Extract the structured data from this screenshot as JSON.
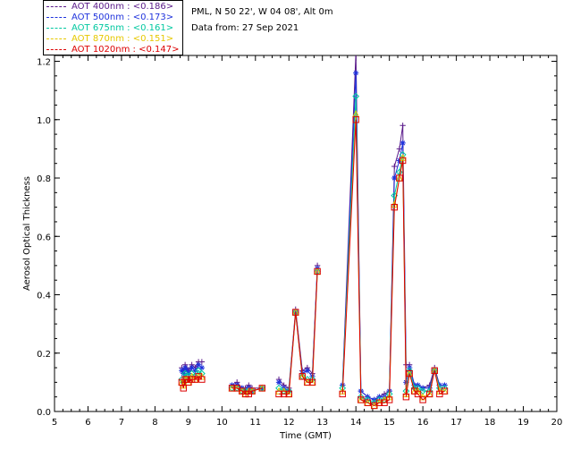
{
  "header": {
    "site": "PML, N 50 22', W 04 08', Alt 0m",
    "date_line": "Data from: 27 Sep 2021"
  },
  "legend": [
    {
      "label": "AOT  400nm : <0.186>",
      "color": "#5a1a8a"
    },
    {
      "label": "AOT  500nm : <0.173>",
      "color": "#1e32dc"
    },
    {
      "label": "AOT  675nm : <0.161>",
      "color": "#00c8a0"
    },
    {
      "label": "AOT  870nm : <0.151>",
      "color": "#e6c800"
    },
    {
      "label": "AOT 1020nm : <0.147>",
      "color": "#dc0000"
    }
  ],
  "chart_data": {
    "type": "line",
    "xlabel": "Time (GMT)",
    "ylabel": "Aerosol Optical Thickness",
    "xlim": [
      5,
      20
    ],
    "ylim": [
      0,
      1.22
    ],
    "xticks": [
      "5",
      "6",
      "7",
      "8",
      "9",
      "10",
      "11",
      "12",
      "13",
      "14",
      "15",
      "16",
      "17",
      "18",
      "19",
      "20"
    ],
    "yticks": [
      "0.0",
      "0.2",
      "0.4",
      "0.6",
      "0.8",
      "1.0",
      "1.2"
    ],
    "x": [
      8.8,
      8.85,
      8.9,
      8.95,
      9.0,
      9.1,
      9.2,
      9.3,
      9.4,
      10.3,
      10.45,
      10.6,
      10.7,
      10.8,
      10.9,
      11.2,
      11.7,
      11.85,
      12.0,
      12.2,
      12.4,
      12.55,
      12.7,
      12.85,
      13.6,
      14.0,
      14.15,
      14.35,
      14.55,
      14.7,
      14.85,
      15.0,
      15.15,
      15.3,
      15.4,
      15.5,
      15.6,
      15.75,
      15.85,
      16.0,
      16.2,
      16.35,
      16.5,
      16.65
    ],
    "series": [
      {
        "name": "AOT  400nm : <0.186>",
        "color": "#5a1a8a",
        "marker": "plus",
        "values": [
          0.15,
          0.14,
          0.16,
          0.15,
          0.14,
          0.16,
          0.15,
          0.17,
          0.17,
          0.09,
          0.1,
          0.08,
          0.08,
          0.09,
          0.08,
          0.08,
          0.11,
          0.09,
          0.08,
          0.35,
          0.14,
          0.15,
          0.13,
          0.5,
          0.09,
          1.23,
          0.07,
          0.05,
          0.04,
          0.05,
          0.06,
          0.07,
          0.84,
          0.9,
          0.98,
          0.16,
          0.16,
          0.09,
          0.09,
          0.08,
          0.09,
          0.15,
          0.09,
          0.09
        ]
      },
      {
        "name": "AOT  500nm : <0.173>",
        "color": "#1e32dc",
        "marker": "star",
        "values": [
          0.14,
          0.13,
          0.15,
          0.14,
          0.13,
          0.15,
          0.14,
          0.16,
          0.15,
          0.09,
          0.09,
          0.08,
          0.07,
          0.08,
          0.07,
          0.08,
          0.1,
          0.08,
          0.07,
          0.34,
          0.13,
          0.14,
          0.12,
          0.49,
          0.09,
          1.16,
          0.07,
          0.05,
          0.04,
          0.05,
          0.05,
          0.07,
          0.8,
          0.86,
          0.92,
          0.1,
          0.15,
          0.09,
          0.09,
          0.08,
          0.08,
          0.14,
          0.09,
          0.09
        ]
      },
      {
        "name": "AOT  675nm : <0.161>",
        "color": "#00c8a0",
        "marker": "diamond",
        "values": [
          0.11,
          0.1,
          0.13,
          0.12,
          0.11,
          0.13,
          0.12,
          0.14,
          0.13,
          0.08,
          0.08,
          0.07,
          0.07,
          0.07,
          0.07,
          0.08,
          0.08,
          0.07,
          0.07,
          0.34,
          0.12,
          0.11,
          0.11,
          0.48,
          0.08,
          1.08,
          0.05,
          0.04,
          0.03,
          0.04,
          0.04,
          0.06,
          0.74,
          0.82,
          0.88,
          0.07,
          0.14,
          0.08,
          0.08,
          0.07,
          0.07,
          0.14,
          0.08,
          0.08
        ]
      },
      {
        "name": "AOT  870nm : <0.151>",
        "color": "#e6c800",
        "marker": "triangle",
        "values": [
          0.1,
          0.09,
          0.11,
          0.11,
          0.1,
          0.12,
          0.11,
          0.12,
          0.12,
          0.08,
          0.08,
          0.07,
          0.06,
          0.07,
          0.07,
          0.08,
          0.07,
          0.07,
          0.06,
          0.34,
          0.12,
          0.1,
          0.1,
          0.48,
          0.07,
          1.02,
          0.04,
          0.03,
          0.02,
          0.03,
          0.04,
          0.05,
          0.71,
          0.8,
          0.87,
          0.06,
          0.13,
          0.07,
          0.07,
          0.05,
          0.06,
          0.14,
          0.07,
          0.07
        ]
      },
      {
        "name": "AOT 1020nm : <0.147>",
        "color": "#dc0000",
        "marker": "square",
        "values": [
          0.1,
          0.08,
          0.11,
          0.11,
          0.1,
          0.11,
          0.11,
          0.12,
          0.11,
          0.08,
          0.08,
          0.07,
          0.06,
          0.06,
          0.07,
          0.08,
          0.06,
          0.06,
          0.06,
          0.34,
          0.12,
          0.1,
          0.1,
          0.48,
          0.06,
          1.0,
          0.04,
          0.03,
          0.02,
          0.03,
          0.03,
          0.04,
          0.7,
          0.8,
          0.86,
          0.05,
          0.13,
          0.07,
          0.06,
          0.04,
          0.06,
          0.14,
          0.06,
          0.07
        ]
      }
    ]
  }
}
